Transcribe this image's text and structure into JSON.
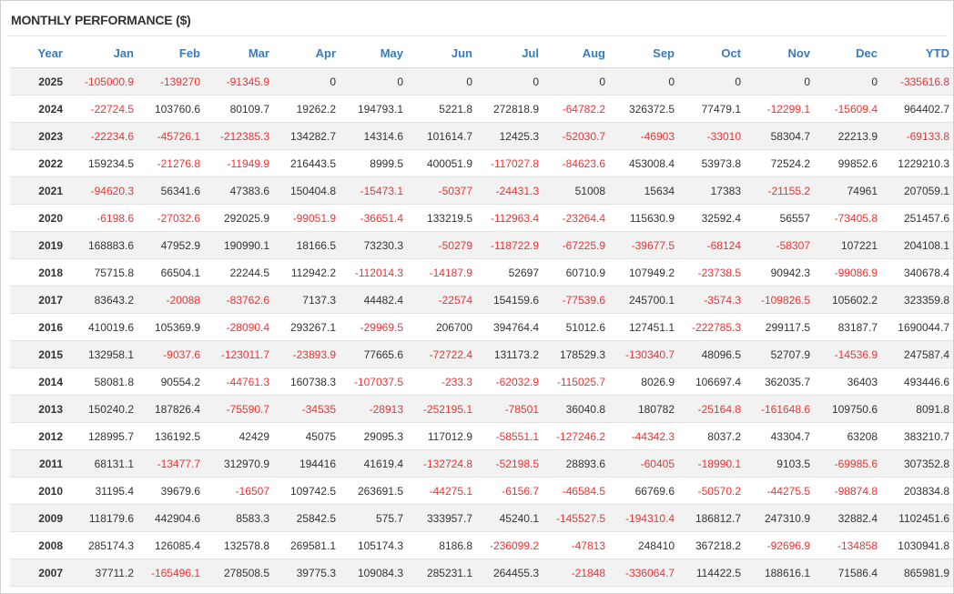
{
  "panel": {
    "title": "MONTHLY PERFORMANCE ($)"
  },
  "colors": {
    "header": "#3a7bbf",
    "positive": "#333333",
    "negative": "#ee3333",
    "stripe": "#f2f2f2"
  },
  "chart_data": {
    "type": "table",
    "columns": [
      "Year",
      "Jan",
      "Feb",
      "Mar",
      "Apr",
      "May",
      "Jun",
      "Jul",
      "Aug",
      "Sep",
      "Oct",
      "Nov",
      "Dec",
      "YTD"
    ],
    "rows": [
      [
        "2025",
        "-105000.9",
        "-139270",
        "-91345.9",
        "0",
        "0",
        "0",
        "0",
        "0",
        "0",
        "0",
        "0",
        "0",
        "-335616.8"
      ],
      [
        "2024",
        "-22724.5",
        "103760.6",
        "80109.7",
        "19262.2",
        "194793.1",
        "5221.8",
        "272818.9",
        "-64782.2",
        "326372.5",
        "77479.1",
        "-12299.1",
        "-15609.4",
        "964402.7"
      ],
      [
        "2023",
        "-22234.6",
        "-45726.1",
        "-212385.3",
        "134282.7",
        "14314.6",
        "101614.7",
        "12425.3",
        "-52030.7",
        "-46903",
        "-33010",
        "58304.7",
        "22213.9",
        "-69133.8"
      ],
      [
        "2022",
        "159234.5",
        "-21276.8",
        "-11949.9",
        "216443.5",
        "8999.5",
        "400051.9",
        "-117027.8",
        "-84623.6",
        "453008.4",
        "53973.8",
        "72524.2",
        "99852.6",
        "1229210.3"
      ],
      [
        "2021",
        "-94620.3",
        "56341.6",
        "47383.6",
        "150404.8",
        "-15473.1",
        "-50377",
        "-24431.3",
        "51008",
        "15634",
        "17383",
        "-21155.2",
        "74961",
        "207059.1"
      ],
      [
        "2020",
        "-6198.6",
        "-27032.6",
        "292025.9",
        "-99051.9",
        "-36651.4",
        "133219.5",
        "-112963.4",
        "-23264.4",
        "115630.9",
        "32592.4",
        "56557",
        "-73405.8",
        "251457.6"
      ],
      [
        "2019",
        "168883.6",
        "47952.9",
        "190990.1",
        "18166.5",
        "73230.3",
        "-50279",
        "-118722.9",
        "-67225.9",
        "-39677.5",
        "-68124",
        "-58307",
        "107221",
        "204108.1"
      ],
      [
        "2018",
        "75715.8",
        "66504.1",
        "22244.5",
        "112942.2",
        "-112014.3",
        "-14187.9",
        "52697",
        "60710.9",
        "107949.2",
        "-23738.5",
        "90942.3",
        "-99086.9",
        "340678.4"
      ],
      [
        "2017",
        "83643.2",
        "-20088",
        "-83762.6",
        "7137.3",
        "44482.4",
        "-22574",
        "154159.6",
        "-77539.6",
        "245700.1",
        "-3574.3",
        "-109826.5",
        "105602.2",
        "323359.8"
      ],
      [
        "2016",
        "410019.6",
        "105369.9",
        "-28090.4",
        "293267.1",
        "-29969.5",
        "206700",
        "394764.4",
        "51012.6",
        "127451.1",
        "-222785.3",
        "299117.5",
        "83187.7",
        "1690044.7"
      ],
      [
        "2015",
        "132958.1",
        "-9037.6",
        "-123011.7",
        "-23893.9",
        "77665.6",
        "-72722.4",
        "131173.2",
        "178529.3",
        "-130340.7",
        "48096.5",
        "52707.9",
        "-14536.9",
        "247587.4"
      ],
      [
        "2014",
        "58081.8",
        "90554.2",
        "-44761.3",
        "160738.3",
        "-107037.5",
        "-233.3",
        "-62032.9",
        "-115025.7",
        "8026.9",
        "106697.4",
        "362035.7",
        "36403",
        "493446.6"
      ],
      [
        "2013",
        "150240.2",
        "187826.4",
        "-75590.7",
        "-34535",
        "-28913",
        "-252195.1",
        "-78501",
        "36040.8",
        "180782",
        "-25164.8",
        "-161648.6",
        "109750.6",
        "8091.8"
      ],
      [
        "2012",
        "128995.7",
        "136192.5",
        "42429",
        "45075",
        "29095.3",
        "117012.9",
        "-58551.1",
        "-127246.2",
        "-44342.3",
        "8037.2",
        "43304.7",
        "63208",
        "383210.7"
      ],
      [
        "2011",
        "68131.1",
        "-13477.7",
        "312970.9",
        "194416",
        "41619.4",
        "-132724.8",
        "-52198.5",
        "28893.6",
        "-60405",
        "-18990.1",
        "9103.5",
        "-69985.6",
        "307352.8"
      ],
      [
        "2010",
        "31195.4",
        "39679.6",
        "-16507",
        "109742.5",
        "263691.5",
        "-44275.1",
        "-6156.7",
        "-46584.5",
        "66769.6",
        "-50570.2",
        "-44275.5",
        "-98874.8",
        "203834.8"
      ],
      [
        "2009",
        "118179.6",
        "442904.6",
        "8583.3",
        "25842.5",
        "575.7",
        "333957.7",
        "45240.1",
        "-145527.5",
        "-194310.4",
        "186812.7",
        "247310.9",
        "32882.4",
        "1102451.6"
      ],
      [
        "2008",
        "285174.3",
        "126085.4",
        "132578.8",
        "269581.1",
        "105174.3",
        "8186.8",
        "-236099.2",
        "-47813",
        "248410",
        "367218.2",
        "-92696.9",
        "-134858",
        "1030941.8"
      ],
      [
        "2007",
        "37711.2",
        "-165496.1",
        "278508.5",
        "39775.3",
        "109084.3",
        "285231.1",
        "264455.3",
        "-21848",
        "-336064.7",
        "114422.5",
        "188616.1",
        "71586.4",
        "865981.9"
      ]
    ]
  }
}
